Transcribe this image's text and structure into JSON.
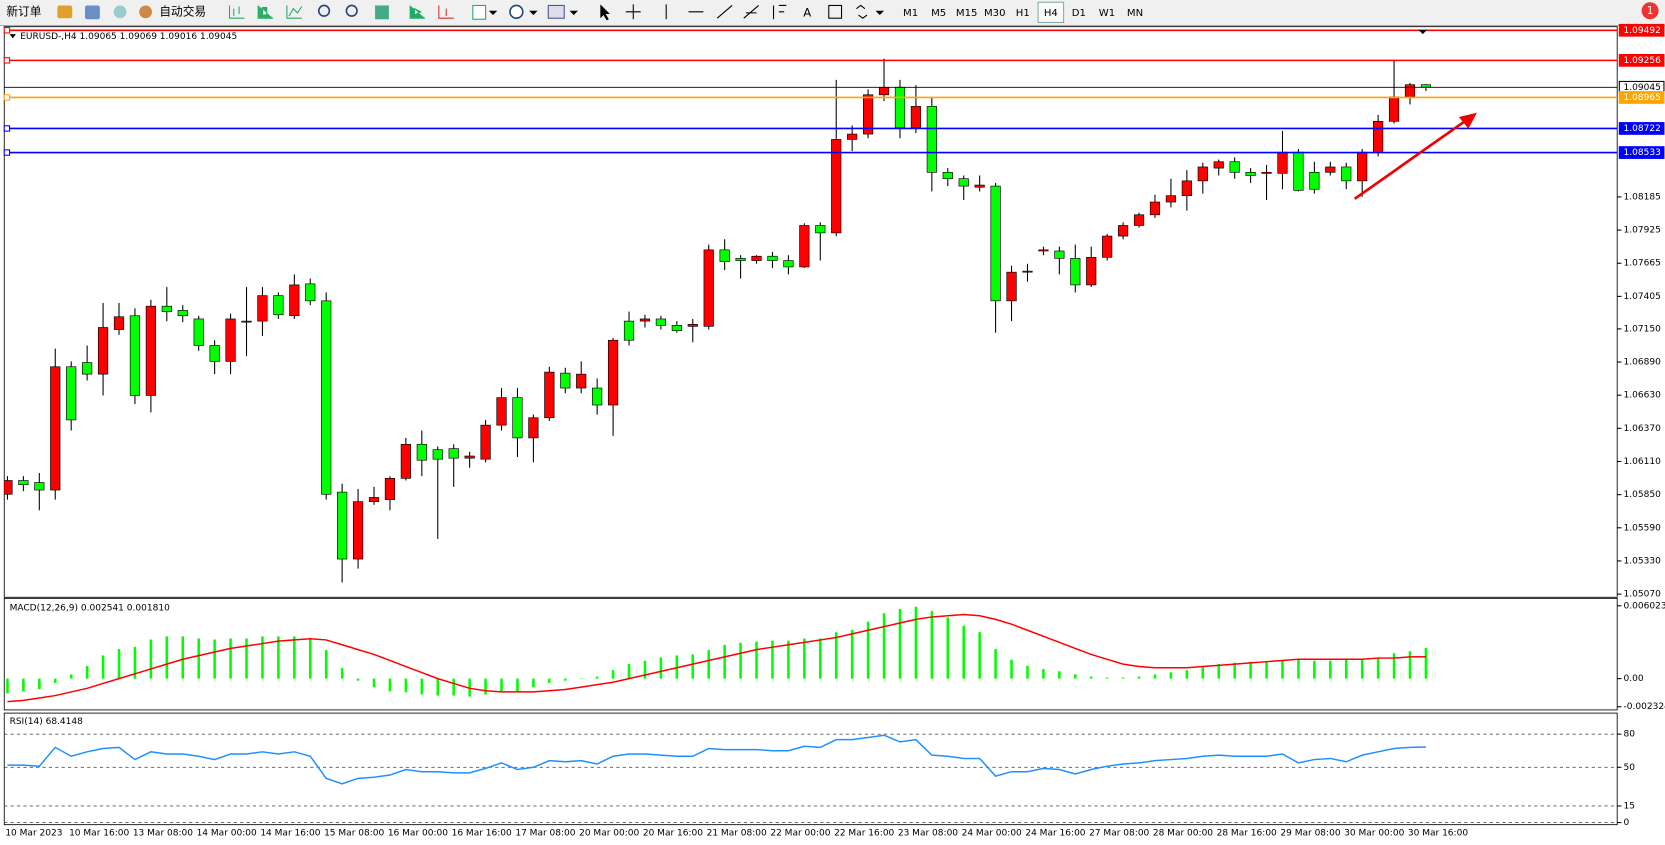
{
  "toolbar": {
    "buttons": [
      "新订单",
      "自动交易"
    ],
    "text_tool": "A",
    "timeframes": [
      "M1",
      "M5",
      "M15",
      "M30",
      "H1",
      "H4",
      "D1",
      "W1",
      "MN"
    ],
    "active_timeframe_index": 5,
    "notification_count": 1
  },
  "chart_data": [
    {
      "type": "candlestick",
      "title": "EURUSD-,H4 1.09065 1.09069 1.09016 1.09045",
      "up_color": "#ff0000",
      "down_color": "#00ff00",
      "ylim": [
        1.0505,
        1.095
      ],
      "yticks": [
        {
          "value": 1.0507,
          "label": "1.05070"
        },
        {
          "value": 1.0533,
          "label": "1.05330"
        },
        {
          "value": 1.0559,
          "label": "1.05590"
        },
        {
          "value": 1.0585,
          "label": "1.05850"
        },
        {
          "value": 1.0611,
          "label": "1.06110"
        },
        {
          "value": 1.0637,
          "label": "1.06370"
        },
        {
          "value": 1.0663,
          "label": "1.06630"
        },
        {
          "value": 1.0689,
          "label": "1.06890"
        },
        {
          "value": 1.0715,
          "label": "1.07150"
        },
        1.07405,
        1.07665,
        1.07925,
        1.08185
      ],
      "levels": [
        {
          "value": 1.09492,
          "color": "#ff0000"
        },
        {
          "value": 1.09256,
          "color": "#ff0000"
        },
        {
          "value": 1.09045,
          "color": "#000000",
          "tag": "#ffffff"
        },
        {
          "value": 1.08965,
          "color": "#ffa500"
        },
        {
          "value": 1.08722,
          "color": "#0000ff"
        },
        {
          "value": 1.08533,
          "color": "#0000ff"
        }
      ],
      "categories": [
        "10 Mar 2023",
        null,
        null,
        null,
        "10 Mar 16:00",
        null,
        null,
        null,
        "13 Mar 08:00",
        null,
        null,
        null,
        "14 Mar 00:00",
        null,
        null,
        null,
        "14 Mar 16:00",
        null,
        null,
        null,
        "15 Mar 08:00",
        null,
        null,
        null,
        "16 Mar 00:00",
        null,
        null,
        null,
        "16 Mar 16:00",
        null,
        null,
        null,
        "17 Mar 08:00",
        null,
        null,
        null,
        "20 Mar 00:00",
        null,
        null,
        null,
        "20 Mar 16:00",
        null,
        null,
        null,
        "21 Mar 08:00",
        null,
        null,
        null,
        "22 Mar 00:00",
        null,
        null,
        null,
        "22 Mar 16:00",
        null,
        null,
        null,
        "23 Mar 08:00",
        null,
        null,
        null,
        "24 Mar 00:00",
        null,
        null,
        null,
        "24 Mar 16:00",
        null,
        null,
        null,
        "27 Mar 08:00",
        null,
        null,
        null,
        "28 Mar 00:00",
        null,
        null,
        null,
        "28 Mar 16:00",
        null,
        null,
        null,
        "29 Mar 08:00",
        null,
        null,
        null,
        "30 Mar 00:00",
        null,
        null,
        null,
        "30 Mar 16:00",
        null
      ],
      "open": [
        1.05853,
        1.05961,
        1.05945,
        1.05886,
        1.06853,
        1.06886,
        1.06795,
        1.07145,
        1.07253,
        1.06628,
        1.07328,
        1.07295,
        1.07228,
        1.0702,
        1.06895,
        1.07203,
        1.07211,
        1.07411,
        1.07253,
        1.07503,
        1.0737,
        1.0587,
        1.05345,
        1.05795,
        1.05811,
        1.05978,
        1.06245,
        1.06203,
        1.06211,
        1.06136,
        1.06128,
        1.06395,
        1.06611,
        1.06295,
        1.06453,
        1.06803,
        1.06686,
        1.06686,
        1.06553,
        1.07211,
        1.07211,
        1.07228,
        1.07178,
        1.0717,
        1.0717,
        1.0777,
        1.07703,
        1.07686,
        1.0772,
        1.07686,
        1.07636,
        1.07961,
        1.07903,
        1.08636,
        1.08678,
        1.08986,
        1.09045,
        1.08728,
        1.08895,
        1.08378,
        1.08328,
        1.08261,
        1.0827,
        1.0737,
        1.07595,
        1.07761,
        1.07761,
        1.07703,
        1.07495,
        1.07711,
        1.07878,
        1.07961,
        1.08045,
        1.08145,
        1.08195,
        1.08311,
        1.08411,
        1.08461,
        1.08378,
        1.0837,
        1.0837,
        1.08536,
        1.08378,
        1.08378,
        1.0842,
        1.08311,
        1.08536,
        1.08778,
        1.0897,
        1.09065
      ],
      "high": [
        1.05995,
        1.05995,
        1.0602,
        1.06995,
        1.06895,
        1.0702,
        1.07353,
        1.07353,
        1.07311,
        1.07378,
        1.07478,
        1.07336,
        1.07253,
        1.07061,
        1.0727,
        1.07478,
        1.07478,
        1.07436,
        1.07578,
        1.07545,
        1.07436,
        1.05936,
        1.05895,
        1.05911,
        1.05995,
        1.06295,
        1.06353,
        1.06228,
        1.06245,
        1.06186,
        1.06436,
        1.06686,
        1.06686,
        1.06478,
        1.06853,
        1.06845,
        1.06895,
        1.06761,
        1.07078,
        1.07286,
        1.07261,
        1.07253,
        1.07211,
        1.07228,
        1.07811,
        1.07853,
        1.07728,
        1.07728,
        1.07753,
        1.07728,
        1.07978,
        1.07986,
        1.09103,
        1.08745,
        1.09028,
        1.0927,
        1.09103,
        1.09061,
        1.08961,
        1.08411,
        1.08353,
        1.08353,
        1.08295,
        1.07645,
        1.07661,
        1.07795,
        1.07795,
        1.07811,
        1.07795,
        1.07895,
        1.07986,
        1.08061,
        1.08203,
        1.08328,
        1.08395,
        1.08453,
        1.08478,
        1.08495,
        1.08411,
        1.08436,
        1.08703,
        1.08561,
        1.08461,
        1.08461,
        1.08453,
        1.08561,
        1.08828,
        1.09261,
        1.09078,
        1.09069
      ],
      "low": [
        1.05811,
        1.05878,
        1.05728,
        1.05811,
        1.06353,
        1.06745,
        1.06628,
        1.07103,
        1.06561,
        1.06495,
        1.07211,
        1.07203,
        1.06978,
        1.06795,
        1.06795,
        1.06936,
        1.07095,
        1.07228,
        1.07228,
        1.07336,
        1.05811,
        1.05161,
        1.0527,
        1.0577,
        1.05728,
        1.05961,
        1.05995,
        1.05503,
        1.05911,
        1.06061,
        1.06103,
        1.06353,
        1.06145,
        1.06103,
        1.06428,
        1.06645,
        1.06645,
        1.06478,
        1.06311,
        1.0702,
        1.07161,
        1.07145,
        1.0712,
        1.07045,
        1.07145,
        1.07611,
        1.07545,
        1.07661,
        1.07628,
        1.07578,
        1.07628,
        1.07686,
        1.07878,
        1.08545,
        1.08645,
        1.08936,
        1.08645,
        1.08686,
        1.08228,
        1.0827,
        1.08161,
        1.08228,
        1.0712,
        1.07211,
        1.0752,
        1.07728,
        1.07578,
        1.07436,
        1.07478,
        1.07686,
        1.07853,
        1.07945,
        1.0802,
        1.08103,
        1.08078,
        1.08211,
        1.08353,
        1.08328,
        1.08295,
        1.08161,
        1.08245,
        1.08228,
        1.08211,
        1.08353,
        1.08245,
        1.08186,
        1.08503,
        1.08761,
        1.08911,
        1.09016
      ],
      "close": [
        1.05961,
        1.05928,
        1.05886,
        1.06853,
        1.06436,
        1.06795,
        1.07161,
        1.07245,
        1.06628,
        1.07328,
        1.07286,
        1.07253,
        1.0702,
        1.06895,
        1.07228,
        1.07211,
        1.07411,
        1.07261,
        1.07495,
        1.0737,
        1.05853,
        1.05345,
        1.05795,
        1.05828,
        1.05978,
        1.06245,
        1.0612,
        1.06128,
        1.06136,
        1.06153,
        1.06395,
        1.06611,
        1.06295,
        1.06453,
        1.06811,
        1.06686,
        1.06795,
        1.06553,
        1.07061,
        1.07061,
        1.07228,
        1.07178,
        1.07136,
        1.07186,
        1.0777,
        1.07678,
        1.07686,
        1.0772,
        1.07686,
        1.07636,
        1.07961,
        1.07903,
        1.08636,
        1.08678,
        1.08986,
        1.09045,
        1.08728,
        1.08895,
        1.08378,
        1.08328,
        1.0827,
        1.08278,
        1.0737,
        1.07595,
        1.07603,
        1.0777,
        1.07703,
        1.07495,
        1.07711,
        1.07878,
        1.07961,
        1.08045,
        1.08145,
        1.08195,
        1.08311,
        1.0842,
        1.08461,
        1.08378,
        1.08353,
        1.08378,
        1.08536,
        1.08236,
        1.08245,
        1.0842,
        1.08311,
        1.08536,
        1.08778,
        1.0897,
        1.09065,
        1.09045
      ]
    },
    {
      "type": "macd",
      "title": "MACD(12,26,9) 0.002541 0.001810",
      "ylim": [
        -0.002324,
        0.006023
      ],
      "yticks": [
        0.006023,
        {
          "value": 0,
          "label": "0.00"
        },
        -0.002324
      ],
      "series": [
        {
          "type": "bar",
          "color": "#00ff00",
          "values": [
            -0.00122,
            -0.00105,
            -0.00087,
            -0.00035,
            0.00035,
            0.00105,
            0.00192,
            0.00244,
            0.00262,
            0.00323,
            0.00349,
            0.00349,
            0.00332,
            0.00323,
            0.00332,
            0.00332,
            0.00349,
            0.00349,
            0.00349,
            0.00332,
            0.00236,
            0.00087,
            -0.00017,
            -0.0007,
            -0.00105,
            -0.00113,
            -0.00131,
            -0.0014,
            -0.0014,
            -0.00148,
            -0.00131,
            -0.00105,
            -0.00105,
            -0.0007,
            -0.00035,
            -0.00017,
            3e-05,
            0.00017,
            0.0007,
            0.00122,
            0.00148,
            0.00175,
            0.00192,
            0.00201,
            0.00236,
            0.00279,
            0.00297,
            0.00306,
            0.00314,
            0.00314,
            0.00332,
            0.00332,
            0.00384,
            0.00402,
            0.00471,
            0.00541,
            0.00576,
            0.00594,
            0.00559,
            0.00506,
            0.00437,
            0.00384,
            0.00244,
            0.00157,
            0.00105,
            0.00079,
            0.00061,
            0.00035,
            0.00017,
            9e-05,
            9e-05,
            0.00017,
            0.00035,
            0.00052,
            0.0007,
            0.00105,
            0.00122,
            0.00131,
            0.0014,
            0.0014,
            0.00148,
            0.00157,
            0.00148,
            0.00148,
            0.00157,
            0.00157,
            0.00175,
            0.0021,
            0.00227,
            0.002541
          ]
        },
        {
          "type": "line",
          "color": "#ff0000",
          "values": [
            -0.0019,
            -0.0018,
            -0.0016,
            -0.0014,
            -0.0011,
            -0.0008,
            -0.0004,
            0.0,
            0.0004,
            0.0008,
            0.0012,
            0.0016,
            0.0019,
            0.0022,
            0.0025,
            0.0027,
            0.0029,
            0.0031,
            0.0032,
            0.0033,
            0.0032,
            0.0028,
            0.0024,
            0.002,
            0.0015,
            0.001,
            0.0005,
            0.0,
            -0.0004,
            -0.0008,
            -0.001,
            -0.0011,
            -0.0011,
            -0.0011,
            -0.001,
            -0.0009,
            -0.0007,
            -0.0005,
            -0.0003,
            0.0,
            0.0003,
            0.0006,
            0.0009,
            0.0012,
            0.0015,
            0.0018,
            0.0021,
            0.0024,
            0.0026,
            0.0028,
            0.003,
            0.0032,
            0.0034,
            0.0037,
            0.004,
            0.0043,
            0.0046,
            0.0049,
            0.0051,
            0.0052,
            0.0053,
            0.0052,
            0.0049,
            0.0045,
            0.004,
            0.0035,
            0.003,
            0.0025,
            0.002,
            0.0016,
            0.0012,
            0.001,
            0.0009,
            0.0009,
            0.0009,
            0.001,
            0.0011,
            0.0012,
            0.0013,
            0.0014,
            0.0015,
            0.0016,
            0.0016,
            0.0016,
            0.0016,
            0.0016,
            0.0017,
            0.0017,
            0.0018,
            0.00181
          ]
        }
      ]
    },
    {
      "type": "rsi",
      "title": "RSI(14) 68.4148",
      "ylim": [
        0,
        100
      ],
      "yticks": [
        80,
        50,
        15,
        0
      ],
      "level_lines": true,
      "series": [
        {
          "type": "line",
          "color": "#1e90ff",
          "values": [
            52,
            52,
            51,
            68,
            60,
            64,
            67,
            68,
            57,
            64,
            62,
            62,
            60,
            57,
            62,
            62,
            64,
            62,
            64,
            60,
            40,
            35,
            40,
            41,
            43,
            48,
            46,
            46,
            45,
            45,
            49,
            54,
            48,
            50,
            56,
            55,
            56,
            53,
            60,
            62,
            62,
            61,
            60,
            60,
            67,
            66,
            66,
            66,
            65,
            65,
            69,
            68,
            75,
            75,
            77,
            79,
            73,
            75,
            61,
            60,
            58,
            58,
            42,
            46,
            46,
            49,
            48,
            44,
            48,
            51,
            53,
            54,
            56,
            57,
            58,
            60,
            61,
            60,
            60,
            60,
            62,
            54,
            57,
            58,
            55,
            61,
            64,
            67,
            68,
            68.4148
          ]
        }
      ]
    }
  ]
}
